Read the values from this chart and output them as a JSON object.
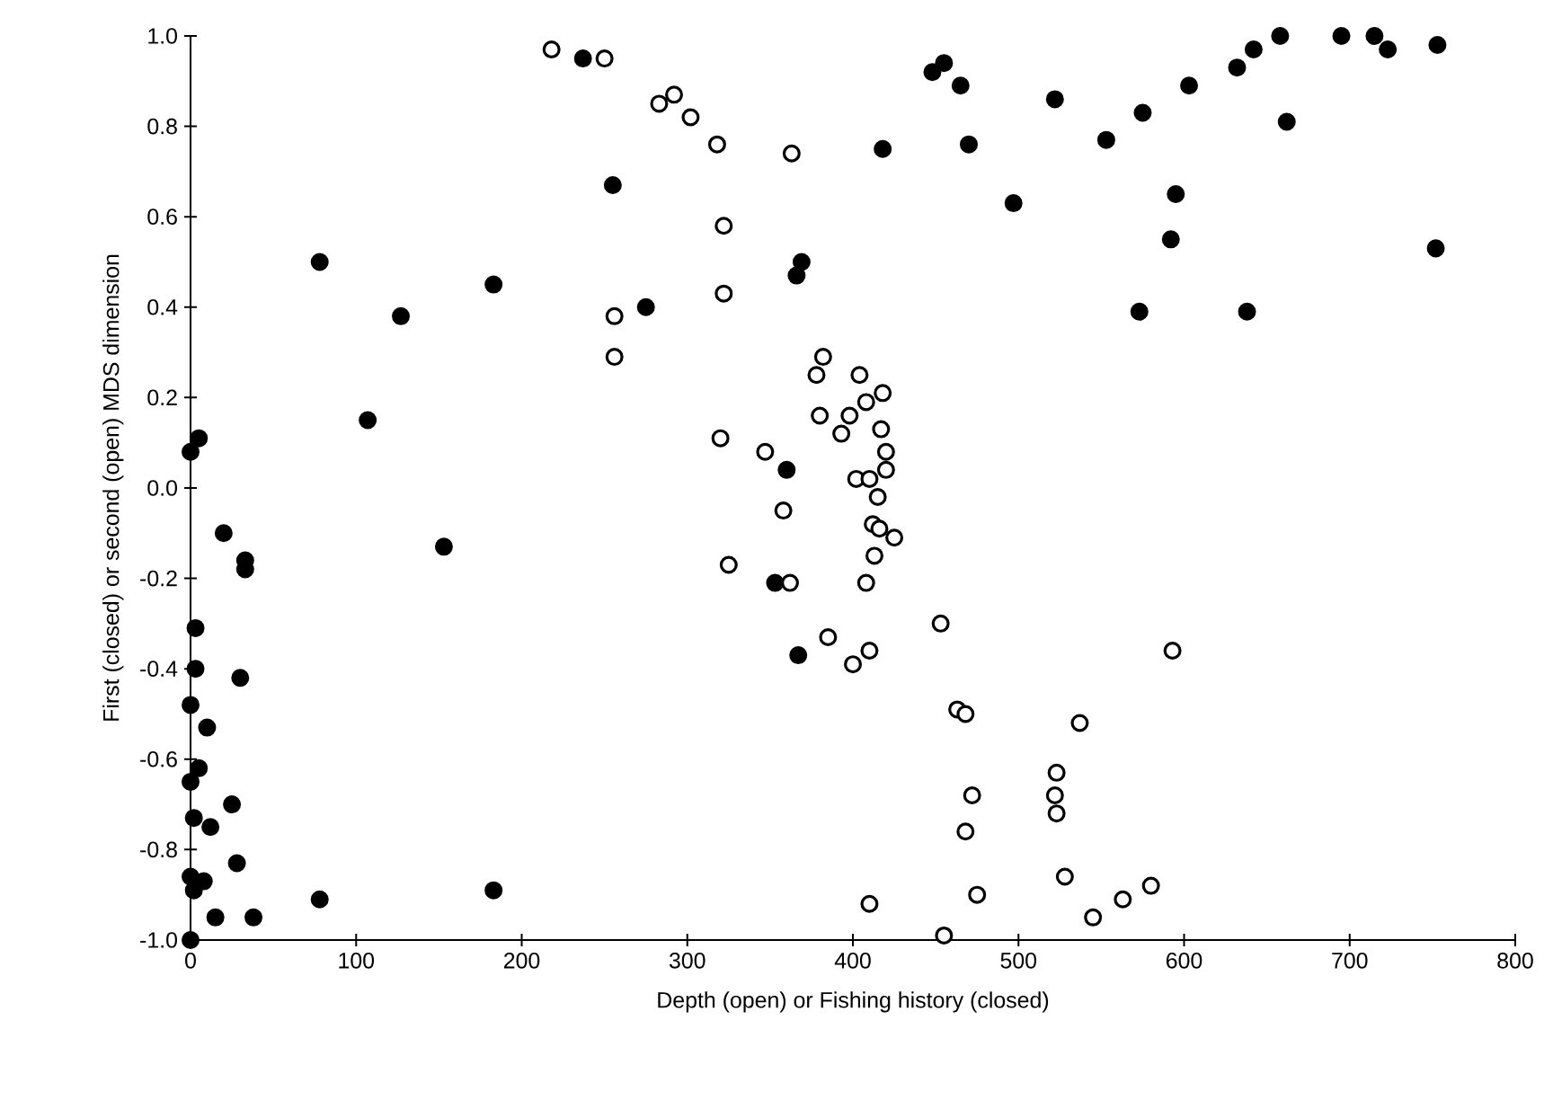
{
  "chart_data": {
    "type": "scatter",
    "xlabel": "Depth (open) or Fishing history (closed)",
    "ylabel": "First (closed) or second (open) MDS dimension",
    "xlim": [
      0,
      800
    ],
    "ylim": [
      -1.0,
      1.0
    ],
    "xticks": [
      0,
      100,
      200,
      300,
      400,
      500,
      600,
      700,
      800
    ],
    "yticks": [
      {
        "value": -1.0,
        "label": "-1.0"
      },
      {
        "value": -0.8,
        "label": "-0.8"
      },
      {
        "value": -0.6,
        "label": "-0.6"
      },
      {
        "value": -0.4,
        "label": "-0.4"
      },
      {
        "value": -0.2,
        "label": "-0.2"
      },
      {
        "value": 0.0,
        "label": "0.0"
      },
      {
        "value": 0.2,
        "label": "0.2"
      },
      {
        "value": 0.4,
        "label": "0.4"
      },
      {
        "value": 0.6,
        "label": "0.6"
      },
      {
        "value": 0.8,
        "label": "0.8"
      },
      {
        "value": 1.0,
        "label": "1.0"
      }
    ],
    "grid": false,
    "marker": "circle",
    "series": [
      {
        "color": "#000000",
        "x": [
          0,
          5,
          0,
          0,
          3,
          3,
          5,
          2,
          0,
          2,
          8,
          10,
          12,
          15,
          20,
          25,
          28,
          30,
          33,
          33,
          38,
          0,
          78,
          78,
          107,
          127,
          153,
          183,
          183,
          237,
          255,
          275,
          353,
          360,
          366,
          369,
          367,
          448,
          455,
          465,
          470,
          418,
          497,
          522,
          553,
          575,
          573,
          592,
          595,
          603,
          632,
          642,
          658,
          662,
          638,
          695,
          715,
          723,
          753,
          752
        ],
        "values": [
          0.08,
          0.11,
          -0.48,
          -0.65,
          -0.31,
          -0.4,
          -0.62,
          -0.73,
          -0.86,
          -0.89,
          -0.87,
          -0.53,
          -0.75,
          -0.95,
          -0.1,
          -0.7,
          -0.83,
          -0.42,
          -0.16,
          -0.18,
          -0.95,
          -1.0,
          0.5,
          -0.91,
          0.15,
          0.38,
          -0.13,
          0.45,
          -0.89,
          0.95,
          0.67,
          0.4,
          -0.21,
          0.04,
          0.47,
          0.5,
          -0.37,
          0.92,
          0.94,
          0.89,
          0.76,
          0.75,
          0.63,
          0.86,
          0.77,
          0.83,
          0.39,
          0.55,
          0.65,
          0.89,
          0.93,
          0.97,
          1.0,
          0.81,
          0.39,
          1.0,
          1.0,
          0.97,
          0.98,
          0.53
        ]
      },
      {
        "color": "#000000",
        "x": [
          218,
          250,
          283,
          292,
          302,
          318,
          322,
          322,
          256,
          256,
          363,
          320,
          325,
          347,
          358,
          362,
          382,
          378,
          380,
          393,
          398,
          404,
          408,
          418,
          417,
          420,
          420,
          402,
          410,
          415,
          412,
          416,
          425,
          413,
          408,
          385,
          400,
          410,
          453,
          463,
          468,
          472,
          468,
          475,
          410,
          455,
          523,
          522,
          523,
          537,
          528,
          545,
          563,
          580,
          593
        ],
        "values": [
          0.97,
          0.95,
          0.85,
          0.87,
          0.82,
          0.76,
          0.58,
          0.43,
          0.38,
          0.29,
          0.74,
          0.11,
          -0.17,
          0.08,
          -0.05,
          -0.21,
          0.29,
          0.25,
          0.16,
          0.12,
          0.16,
          0.25,
          0.19,
          0.21,
          0.13,
          0.08,
          0.04,
          0.02,
          0.02,
          -0.02,
          -0.08,
          -0.09,
          -0.11,
          -0.15,
          -0.21,
          -0.33,
          -0.39,
          -0.36,
          -0.3,
          -0.49,
          -0.5,
          -0.68,
          -0.76,
          -0.9,
          -0.92,
          -0.99,
          -0.63,
          -0.68,
          -0.72,
          -0.52,
          -0.86,
          -0.95,
          -0.91,
          -0.88,
          -0.36
        ]
      }
    ]
  }
}
